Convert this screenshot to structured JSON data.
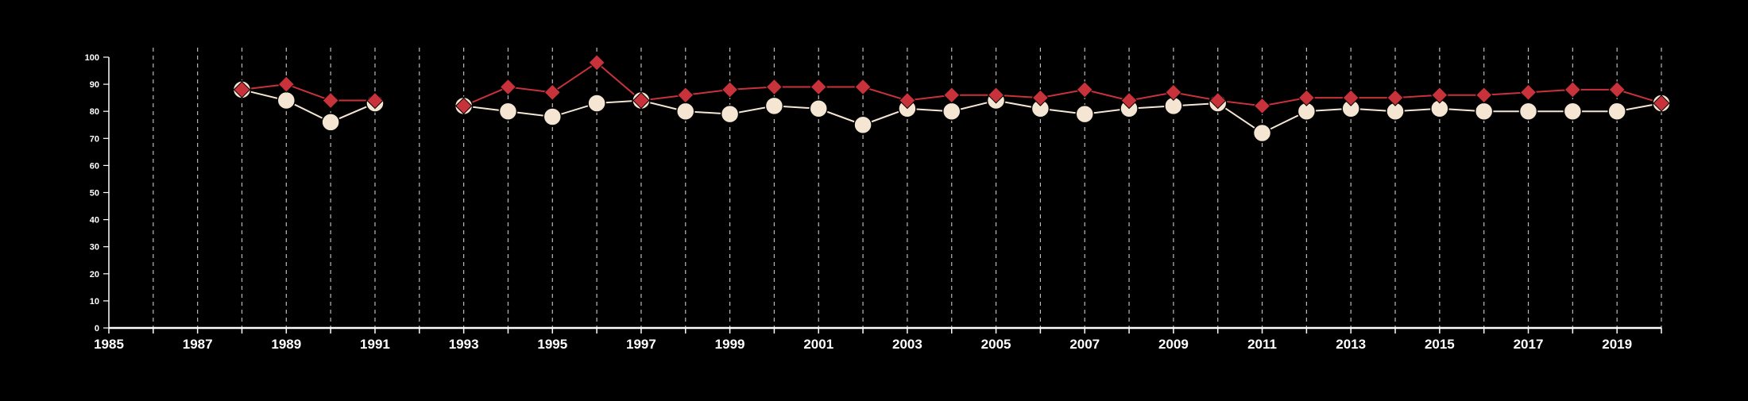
{
  "chart_data": {
    "type": "line",
    "title": "",
    "xlabel": "",
    "ylabel": "",
    "xlim": [
      1985,
      2020
    ],
    "ylim": [
      0,
      100
    ],
    "x_ticks": [
      "1985",
      "1987",
      "1989",
      "1991",
      "1993",
      "1995",
      "1997",
      "1999",
      "2001",
      "2003",
      "2005",
      "2007",
      "2009",
      "2011",
      "2013",
      "2015",
      "2017",
      "2019"
    ],
    "y_ticks": [
      "0",
      "10",
      "20",
      "30",
      "40",
      "50",
      "60",
      "70",
      "80",
      "90",
      "100"
    ],
    "grid": "vertical dashed lines at every year",
    "legend": "none",
    "series": [
      {
        "color": "#f5e6d3",
        "marker": "circle",
        "points": [
          [
            1988,
            88
          ],
          [
            1989,
            84
          ],
          [
            1990,
            76
          ],
          [
            1991,
            83
          ],
          [
            1993,
            82
          ],
          [
            1994,
            80
          ],
          [
            1995,
            78
          ],
          [
            1996,
            83
          ],
          [
            1997,
            84
          ],
          [
            1998,
            80
          ],
          [
            1999,
            79
          ],
          [
            2000,
            82
          ],
          [
            2001,
            81
          ],
          [
            2002,
            75
          ],
          [
            2003,
            81
          ],
          [
            2004,
            80
          ],
          [
            2005,
            84
          ],
          [
            2006,
            81
          ],
          [
            2007,
            79
          ],
          [
            2008,
            81
          ],
          [
            2009,
            82
          ],
          [
            2010,
            83
          ],
          [
            2011,
            72
          ],
          [
            2012,
            80
          ],
          [
            2013,
            81
          ],
          [
            2014,
            80
          ],
          [
            2015,
            81
          ],
          [
            2016,
            80
          ],
          [
            2017,
            80
          ],
          [
            2018,
            80
          ],
          [
            2019,
            80
          ],
          [
            2020,
            83
          ]
        ]
      },
      {
        "color": "#c8323a",
        "marker": "diamond",
        "points": [
          [
            1988,
            88
          ],
          [
            1989,
            90
          ],
          [
            1990,
            84
          ],
          [
            1991,
            84
          ],
          [
            1993,
            82
          ],
          [
            1994,
            89
          ],
          [
            1995,
            87
          ],
          [
            1996,
            98
          ],
          [
            1997,
            84
          ],
          [
            1998,
            86
          ],
          [
            1999,
            88
          ],
          [
            2000,
            89
          ],
          [
            2001,
            89
          ],
          [
            2002,
            89
          ],
          [
            2003,
            84
          ],
          [
            2004,
            86
          ],
          [
            2005,
            86
          ],
          [
            2006,
            85
          ],
          [
            2007,
            88
          ],
          [
            2008,
            84
          ],
          [
            2009,
            87
          ],
          [
            2010,
            84
          ],
          [
            2011,
            82
          ],
          [
            2012,
            85
          ],
          [
            2013,
            85
          ],
          [
            2014,
            85
          ],
          [
            2015,
            86
          ],
          [
            2016,
            86
          ],
          [
            2017,
            87
          ],
          [
            2018,
            88
          ],
          [
            2019,
            88
          ],
          [
            2020,
            83
          ]
        ]
      }
    ]
  }
}
